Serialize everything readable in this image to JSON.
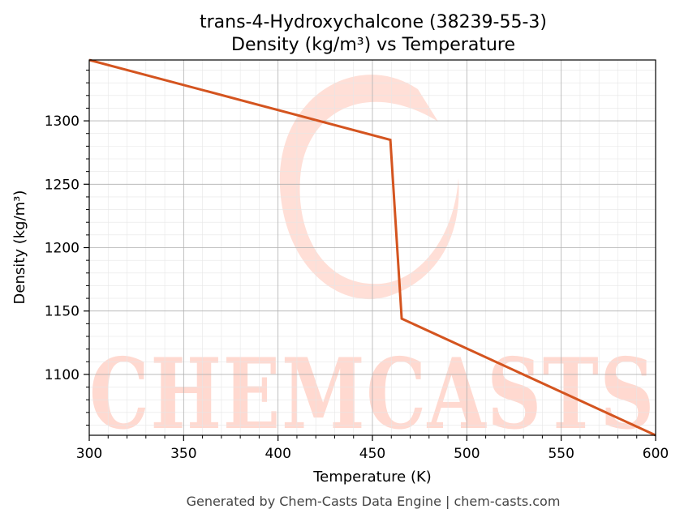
{
  "chart_data": {
    "type": "line",
    "title": "trans-4-Hydroxychalcone (38239-55-3)",
    "subtitle": "Density (kg/m³) vs Temperature",
    "xlabel": "Temperature (K)",
    "ylabel": "Density (kg/m³)",
    "xlim": [
      300,
      600
    ],
    "ylim": [
      1052,
      1348
    ],
    "x_ticks": [
      300,
      350,
      400,
      450,
      500,
      550,
      600
    ],
    "y_ticks": [
      1100,
      1150,
      1200,
      1250,
      1300
    ],
    "grid": true,
    "series": [
      {
        "color": "#d4541f",
        "x": [
          300,
          459.5,
          465.5,
          600
        ],
        "y": [
          1348,
          1285,
          1144,
          1052
        ]
      }
    ]
  },
  "watermark": "CHEMCASTS",
  "footer": "Generated by Chem-Casts Data Engine | chem-casts.com",
  "colors": {
    "line": "#d4541f",
    "watermark": "#ffd9d0",
    "grid": "#b0b0b0"
  }
}
